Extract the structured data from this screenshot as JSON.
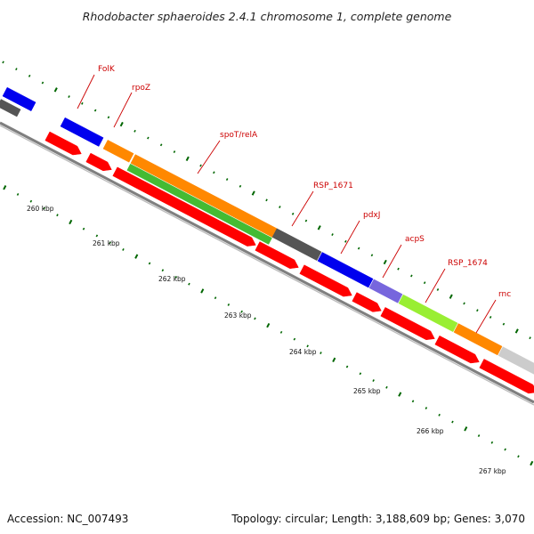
{
  "title": "Rhodobacter sphaeroides 2.4.1 chromosome 1, complete genome",
  "footer": {
    "accession": "Accession: NC_007493",
    "summary": "Topology: circular; Length: 3,188,609 bp; Genes: 3,070"
  },
  "colors": {
    "background": "#ffffff",
    "backbone": "#7f7f7f",
    "label": "#cc0000",
    "tick": "#006600",
    "reverse_strand_gene": "#ff0000",
    "blue": "#0000ee",
    "orange": "#ff8800",
    "green": "#44bb33",
    "lime": "#99ee33",
    "dark_gray": "#555555",
    "light_gray": "#cccccc",
    "purple": "#7766dd"
  },
  "kbp_labels": [
    "260 kbp",
    "261 kbp",
    "262 kbp",
    "263 kbp",
    "264 kbp",
    "265 kbp",
    "266 kbp",
    "267 kbp"
  ],
  "genes": [
    {
      "name": "FolK",
      "color": "#0000ee"
    },
    {
      "name": "rpoZ",
      "color": "#ff8800"
    },
    {
      "name": "spoT/relA",
      "color": "#44bb33"
    },
    {
      "name": "RSP_1671",
      "color": "#555555"
    },
    {
      "name": "pdxJ",
      "color": "#0000ee"
    },
    {
      "name": "acpS",
      "color": "#7766dd"
    },
    {
      "name": "RSP_1674",
      "color": "#99ee33"
    },
    {
      "name": "rnc",
      "color": "#ff8800"
    }
  ]
}
